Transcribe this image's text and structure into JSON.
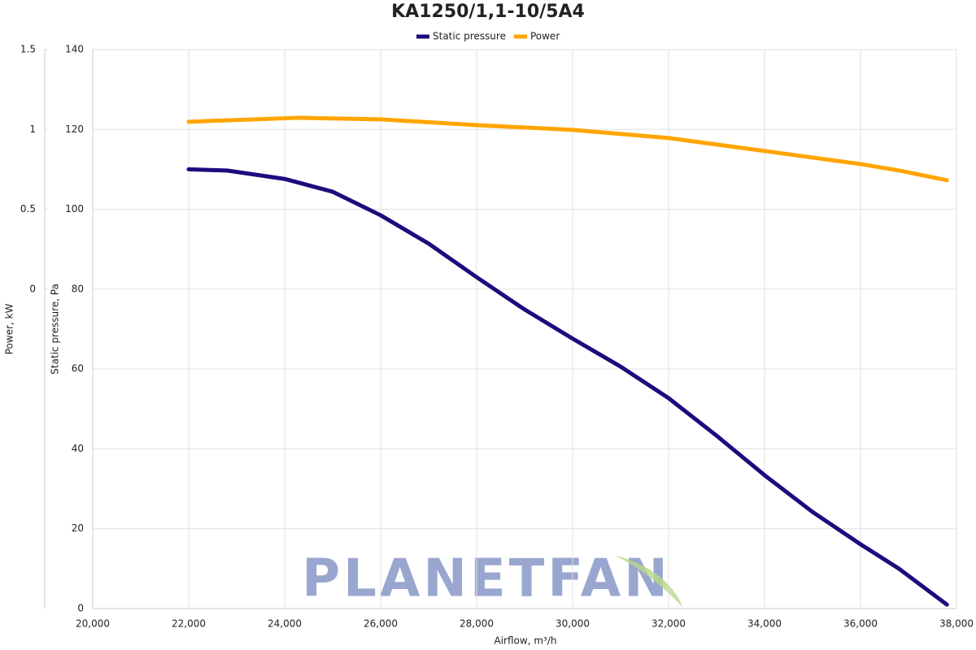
{
  "chart_data": {
    "type": "line",
    "title": "KA1250/1,1-10/5A4",
    "x_label": "Airflow, m³/h",
    "y_label": "Static pressure, Pa",
    "y2_label": "Power, kW",
    "watermark": "PLANETFAN",
    "legend": "top",
    "grid": true,
    "xlim": [
      20000,
      38000
    ],
    "xticks": [
      {
        "value": 20000,
        "label": "20,000"
      },
      {
        "value": 22000,
        "label": "22,000"
      },
      {
        "value": 24000,
        "label": "24,000"
      },
      {
        "value": 26000,
        "label": "26,000"
      },
      {
        "value": 28000,
        "label": "28,000"
      },
      {
        "value": 30000,
        "label": "30,000"
      },
      {
        "value": 32000,
        "label": "32,000"
      },
      {
        "value": 34000,
        "label": "34,000"
      },
      {
        "value": 36000,
        "label": "36,000"
      },
      {
        "value": 38000,
        "label": "38,000"
      }
    ],
    "ylim": [
      0,
      140
    ],
    "yticks": [
      0,
      20,
      40,
      60,
      80,
      100,
      120,
      140
    ],
    "y2lim": [
      -2,
      1.5
    ],
    "y2ticks": [
      0,
      0.5,
      1,
      1.5
    ],
    "series": [
      {
        "name": "Static pressure",
        "color": "#1f0a7e",
        "x": [
          22000,
          22800,
          24000,
          25000,
          26000,
          27000,
          28000,
          29000,
          30000,
          31000,
          32000,
          33000,
          34000,
          35000,
          36000,
          36800,
          37800
        ],
        "values": [
          110,
          109.7,
          107.6,
          104.4,
          98.5,
          91.4,
          83,
          74.9,
          67.6,
          60.6,
          52.7,
          43.3,
          33.4,
          24.2,
          16.1,
          10,
          1
        ]
      },
      {
        "name": "Power",
        "color": "#ffa500",
        "axis": "y2",
        "x": [
          22000,
          24300,
          26000,
          28000,
          30000,
          32000,
          34000,
          36000,
          36800,
          37800
        ],
        "values": [
          1.048,
          1.073,
          1.063,
          1.027,
          0.997,
          0.946,
          0.865,
          0.783,
          0.743,
          0.682
        ]
      }
    ]
  }
}
